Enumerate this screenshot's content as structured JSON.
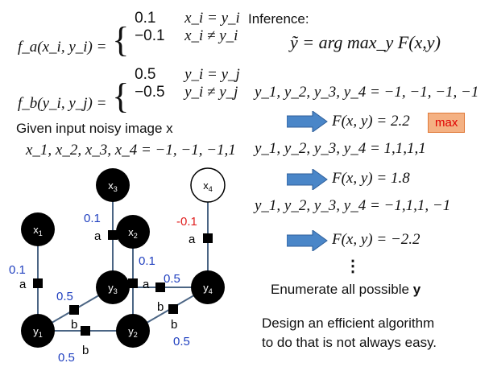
{
  "factor_defs": {
    "fa": {
      "lhs": "f_a(x_i, y_i) =",
      "case1_value": "0.1",
      "case1_cond": "x_i = y_i",
      "case2_value": "−0.1",
      "case2_cond": "x_i ≠ y_i"
    },
    "fb": {
      "lhs": "f_b(y_i, y_j) =",
      "case1_value": "0.5",
      "case1_cond": "y_i = y_j",
      "case2_value": "−0.5",
      "case2_cond": "y_i ≠ y_j"
    }
  },
  "given": {
    "label": "Given input noisy image x",
    "assignment": "x_1, x_2, x_3, x_4 = −1, −1, −1,1"
  },
  "inference": {
    "label": "Inference:",
    "formula": "ỹ = arg max_y F(x,y)"
  },
  "enumeration": [
    {
      "assignment": "y_1, y_2, y_3, y_4 = −1, −1, −1, −1",
      "score": "F(x, y) = 2.2",
      "badge": "max"
    },
    {
      "assignment": "y_1, y_2, y_3, y_4 = 1,1,1,1",
      "score": "F(x, y) = 1.8"
    },
    {
      "assignment": "y_1, y_2, y_3, y_4 = −1,1,1, −1",
      "score": "F(x, y) = −2.2"
    }
  ],
  "ellipsis": "⋮",
  "enumerate_text": {
    "prefix": "Enumerate all possible ",
    "bold": "y"
  },
  "design_note": {
    "line1": "Design an efficient algorithm",
    "line2": "to do that is not always easy."
  },
  "graph": {
    "nodes": {
      "x1": "x",
      "x1_sub": "1",
      "x2": "x",
      "x2_sub": "2",
      "x3": "x",
      "x3_sub": "3",
      "x4": "x",
      "x4_sub": "4",
      "y1": "y",
      "y1_sub": "1",
      "y2": "y",
      "y2_sub": "2",
      "y3": "y",
      "y3_sub": "3",
      "y4": "y",
      "y4_sub": "4"
    },
    "factor_labels": {
      "a": "a",
      "b": "b"
    },
    "weights": {
      "a_x1": "0.1",
      "a_x2": "0.1",
      "a_x3": "0.1",
      "a_x4": "-0.1",
      "b_y1y2": "0.5",
      "b_y1y3": "0.5",
      "b_y3y4": "0.5",
      "b_y2y4": "0.5"
    },
    "colors": {
      "blue": "#1f3fbf",
      "red": "#e02020",
      "edge": "#4b6584",
      "node": "#000000"
    }
  }
}
